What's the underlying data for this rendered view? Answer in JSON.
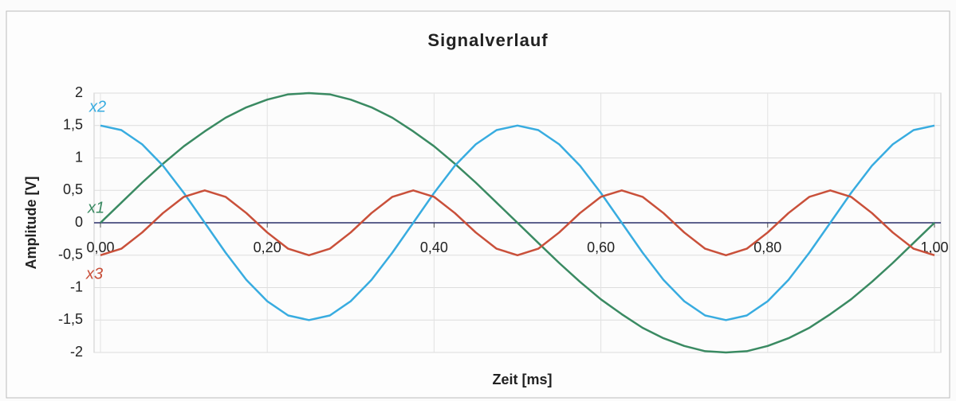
{
  "chart_data": {
    "type": "line",
    "title": "Signalverlauf",
    "x_label": "Zeit [ms]",
    "y_label": "Amplitude [V]",
    "x": [
      0,
      0.025,
      0.05,
      0.075,
      0.1,
      0.125,
      0.15,
      0.175,
      0.2,
      0.225,
      0.25,
      0.275,
      0.3,
      0.325,
      0.35,
      0.375,
      0.4,
      0.425,
      0.45,
      0.475,
      0.5,
      0.525,
      0.55,
      0.575,
      0.6,
      0.625,
      0.65,
      0.675,
      0.7,
      0.725,
      0.75,
      0.775,
      0.8,
      0.825,
      0.85,
      0.875,
      0.9,
      0.925,
      0.95,
      0.975,
      1
    ],
    "series": [
      {
        "name": "x1",
        "color": "#3a8a62",
        "values": [
          0,
          0.31,
          0.62,
          0.91,
          1.18,
          1.41,
          1.62,
          1.78,
          1.9,
          1.98,
          2,
          1.98,
          1.9,
          1.78,
          1.62,
          1.41,
          1.18,
          0.91,
          0.62,
          0.31,
          0,
          -0.31,
          -0.62,
          -0.91,
          -1.18,
          -1.41,
          -1.62,
          -1.78,
          -1.9,
          -1.98,
          -2,
          -1.98,
          -1.9,
          -1.78,
          -1.62,
          -1.41,
          -1.18,
          -0.91,
          -0.62,
          -0.31,
          0
        ]
      },
      {
        "name": "x2",
        "color": "#38ace0",
        "values": [
          1.5,
          1.43,
          1.21,
          0.88,
          0.46,
          0,
          -0.46,
          -0.88,
          -1.21,
          -1.43,
          -1.5,
          -1.43,
          -1.21,
          -0.88,
          -0.46,
          0,
          0.46,
          0.88,
          1.21,
          1.43,
          1.5,
          1.43,
          1.21,
          0.88,
          0.46,
          0,
          -0.46,
          -0.88,
          -1.21,
          -1.43,
          -1.5,
          -1.43,
          -1.21,
          -0.88,
          -0.46,
          0,
          0.46,
          0.88,
          1.21,
          1.43,
          1.5
        ]
      },
      {
        "name": "x3",
        "color": "#c9503a",
        "values": [
          -0.5,
          -0.4,
          -0.15,
          0.15,
          0.4,
          0.5,
          0.4,
          0.15,
          -0.15,
          -0.4,
          -0.5,
          -0.4,
          -0.15,
          0.15,
          0.4,
          0.5,
          0.4,
          0.15,
          -0.15,
          -0.4,
          -0.5,
          -0.4,
          -0.15,
          0.15,
          0.4,
          0.5,
          0.4,
          0.15,
          -0.15,
          -0.4,
          -0.5,
          -0.4,
          -0.15,
          0.15,
          0.4,
          0.5,
          0.4,
          0.15,
          -0.15,
          -0.4,
          -0.5
        ]
      }
    ],
    "xlim": [
      0,
      1
    ],
    "ylim": [
      -2,
      2
    ],
    "xticks": [
      {
        "value": 0,
        "label": "0,00"
      },
      {
        "value": 0.2,
        "label": "0,20"
      },
      {
        "value": 0.4,
        "label": "0,40"
      },
      {
        "value": 0.6,
        "label": "0,60"
      },
      {
        "value": 0.8,
        "label": "0,80"
      },
      {
        "value": 1,
        "label": "1,00"
      }
    ],
    "yticks": [
      -2,
      {
        "value": -1.5,
        "label": "-1,5"
      },
      -1,
      {
        "value": -0.5,
        "label": "-0,5"
      },
      0,
      {
        "value": 0.5,
        "label": "0,5"
      },
      1,
      {
        "value": 1.5,
        "label": "1,5"
      },
      2
    ],
    "grid": true,
    "annotations": [
      {
        "text": "x2",
        "color": "#38ace0"
      },
      {
        "text": "x1",
        "color": "#3a8a62"
      },
      {
        "text": "x3",
        "color": "#c9503a"
      }
    ]
  }
}
